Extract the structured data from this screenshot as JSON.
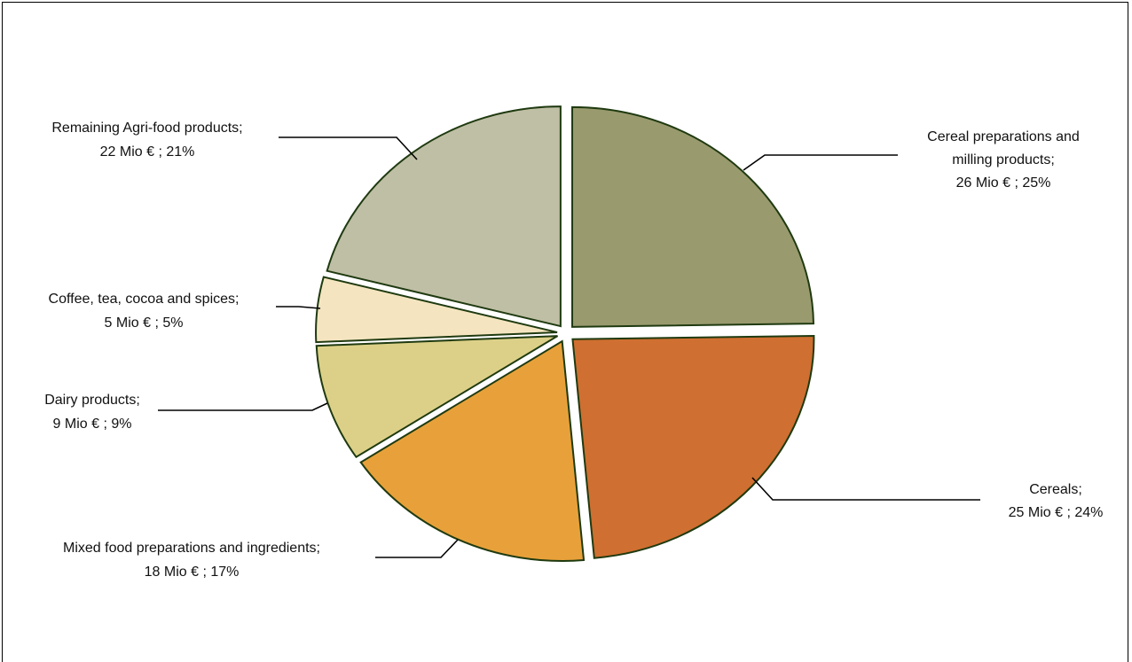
{
  "chart_data": {
    "type": "pie",
    "exploded": true,
    "start_angle": "12 o'clock, clockwise",
    "slices": [
      {
        "name": "Cereal preparations and milling products",
        "value": 26,
        "percent": 25,
        "label_lines": [
          "Cereal preparations and",
          "milling products;",
          "26 Mio € ; 25%"
        ],
        "color": "#9a9a6f"
      },
      {
        "name": "Cereals",
        "value": 25,
        "percent": 24,
        "label_lines": [
          "Cereals;",
          "25 Mio € ; 24%"
        ],
        "color": "#cf6f31"
      },
      {
        "name": "Mixed food preparations and ingredients",
        "value": 18,
        "percent": 17,
        "label_lines": [
          "Mixed food preparations and ingredients;",
          "18 Mio € ; 17%"
        ],
        "color": "#e8a13a"
      },
      {
        "name": "Dairy products",
        "value": 9,
        "percent": 9,
        "label_lines": [
          "Dairy products;",
          "9 Mio € ; 9%"
        ],
        "color": "#dcd088"
      },
      {
        "name": "Coffee, tea, cocoa and spices",
        "value": 5,
        "percent": 5,
        "label_lines": [
          "Coffee, tea, cocoa and spices;",
          "5 Mio € ; 5%"
        ],
        "color": "#f4e5c0"
      },
      {
        "name": "Remaining Agri-food products",
        "value": 22,
        "percent": 21,
        "label_lines": [
          "Remaining Agri-food products;",
          "22 Mio € ; 21%"
        ],
        "color": "#bfbfa5"
      }
    ]
  }
}
